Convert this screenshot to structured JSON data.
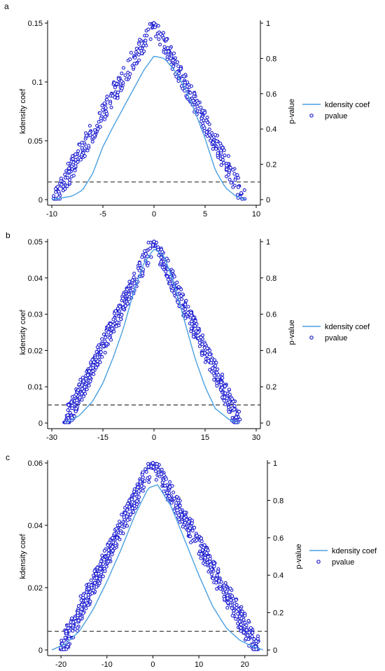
{
  "chart_data": [
    {
      "panel": "a",
      "type": "line+scatter",
      "ylabel": "kdensity coef",
      "y2label": "p-value",
      "xlim": [
        -10,
        10
      ],
      "ylim": [
        0,
        0.15
      ],
      "y2lim": [
        0,
        1
      ],
      "x_ticks": [
        "-10",
        "-5",
        "0",
        "5",
        "10"
      ],
      "y_ticks": [
        "0",
        "0.05",
        "0.1",
        "0.15"
      ],
      "y2_ticks": [
        "0",
        "0.2",
        "0.4",
        "0.6",
        "0.8",
        "1"
      ],
      "threshold_p": 0.1,
      "legend": [
        "kdensity coef",
        "pvalue"
      ],
      "point_count": 500,
      "series": [
        {
          "name": "kdensity coef",
          "type": "line",
          "x": [
            -10,
            -8,
            -7,
            -6,
            -5,
            -4,
            -3,
            -2,
            -1,
            0,
            1,
            2,
            3,
            4,
            5,
            6,
            7,
            8,
            9
          ],
          "values": [
            0.0,
            0.003,
            0.008,
            0.022,
            0.045,
            0.062,
            0.078,
            0.094,
            0.11,
            0.122,
            0.12,
            0.11,
            0.095,
            0.075,
            0.052,
            0.025,
            0.01,
            0.003,
            0.0
          ]
        },
        {
          "name": "pvalue",
          "type": "scatter",
          "xmin": -9.8,
          "xmax": 8.8,
          "peak": 1.0
        }
      ]
    },
    {
      "panel": "b",
      "type": "line+scatter",
      "ylabel": "kdensity coef",
      "y2label": "p-value",
      "xlim": [
        -30,
        30
      ],
      "ylim": [
        0,
        0.05
      ],
      "y2lim": [
        0,
        1
      ],
      "x_ticks": [
        "-30",
        "-15",
        "0",
        "15",
        "30"
      ],
      "y_ticks": [
        "0",
        "0.01",
        "0.02",
        "0.03",
        "0.04",
        "0.05"
      ],
      "y2_ticks": [
        "0",
        "0.2",
        "0.4",
        "0.6",
        "0.8",
        "1"
      ],
      "threshold_p": 0.1,
      "legend": [
        "kdensity coef",
        "pvalue"
      ],
      "point_count": 700,
      "series": [
        {
          "name": "kdensity coef",
          "type": "line",
          "x": [
            -26,
            -22,
            -18,
            -15,
            -12,
            -9,
            -6,
            -3,
            0,
            3,
            6,
            9,
            12,
            15,
            18,
            22,
            25
          ],
          "values": [
            0.0,
            0.002,
            0.006,
            0.011,
            0.018,
            0.026,
            0.036,
            0.044,
            0.048,
            0.046,
            0.038,
            0.028,
            0.018,
            0.01,
            0.004,
            0.001,
            0.0
          ]
        },
        {
          "name": "pvalue",
          "type": "scatter",
          "xmin": -26,
          "xmax": 25,
          "peak": 1.0
        }
      ]
    },
    {
      "panel": "c",
      "type": "line+scatter",
      "ylabel": "kdensity coef",
      "y2label": "p-value",
      "xlim": [
        -22,
        24
      ],
      "ylim": [
        0,
        0.06
      ],
      "y2lim": [
        0,
        1
      ],
      "x_ticks": [
        "-20",
        "-10",
        "0",
        "10",
        "20"
      ],
      "y_ticks": [
        "0",
        "0.02",
        "0.04",
        "0.06"
      ],
      "y2_ticks": [
        "0",
        "0.2",
        "0.4",
        "0.6",
        "0.8",
        "1"
      ],
      "threshold_p": 0.1,
      "legend": [
        "kdensity coef",
        "pvalue"
      ],
      "point_count": 850,
      "series": [
        {
          "name": "kdensity coef",
          "type": "line",
          "x": [
            -22,
            -19,
            -16,
            -13,
            -10,
            -7,
            -4,
            -1,
            1,
            4,
            7,
            10,
            13,
            16,
            19,
            22,
            24
          ],
          "values": [
            0.0,
            0.002,
            0.006,
            0.013,
            0.022,
            0.032,
            0.043,
            0.052,
            0.053,
            0.046,
            0.035,
            0.024,
            0.014,
            0.007,
            0.003,
            0.001,
            0.0
          ]
        },
        {
          "name": "pvalue",
          "type": "scatter",
          "xmin": -20,
          "xmax": 23,
          "peak": 1.0
        }
      ]
    }
  ],
  "colors": {
    "kdensity_line": "#4a9fe0",
    "pvalue_marker": "#1f1fd1",
    "threshold_line": "#333333"
  }
}
